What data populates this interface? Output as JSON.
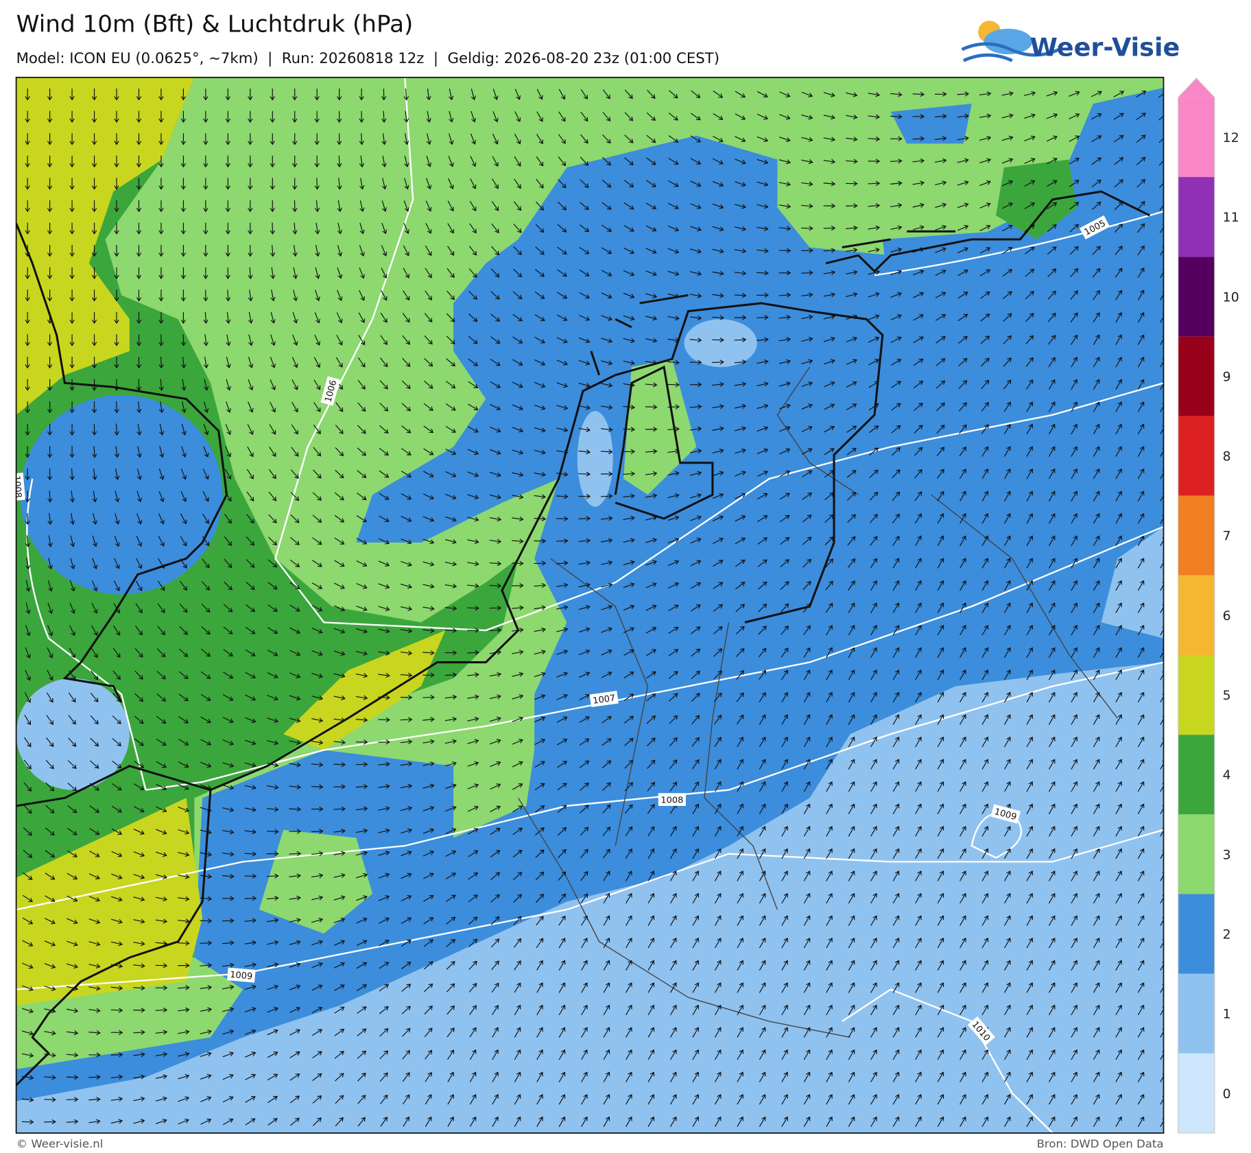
{
  "header": {
    "title": "Wind 10m (Bft) & Luchtdruk (hPa)",
    "subtitle": "Model: ICON EU (0.0625°, ~7km)  |  Run: 20260818 12z  |  Geldig: 2026-08-20 23z (01:00 CEST)"
  },
  "logo": {
    "text": "Weer-Visie"
  },
  "colorbar": {
    "levels": [
      0,
      1,
      2,
      3,
      4,
      5,
      6,
      7,
      8,
      9,
      10,
      11,
      12
    ],
    "colors": [
      "#cde6fb",
      "#90c2ef",
      "#3c8ddc",
      "#8dd86f",
      "#3ba63c",
      "#c8d61f",
      "#f5b731",
      "#f07f22",
      "#dd2121",
      "#98011a",
      "#550060",
      "#8e31b5",
      "#f986c6"
    ]
  },
  "isobar_labels": [
    "1005",
    "1006",
    "1007",
    "1008",
    "1009",
    "1009",
    "1010",
    "1008"
  ],
  "footer": {
    "left": "© Weer-visie.nl",
    "right": "Bron: DWD Open Data"
  }
}
